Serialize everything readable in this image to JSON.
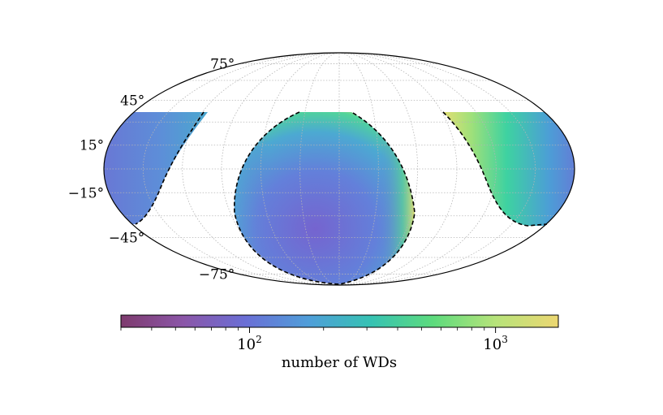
{
  "chart_data": {
    "type": "heatmap",
    "projection": "mollweide",
    "grid": true,
    "latitude_ticks": [
      {
        "value": 75,
        "label": "75°"
      },
      {
        "value": 45,
        "label": "45°"
      },
      {
        "value": 15,
        "label": "15°"
      },
      {
        "value": -15,
        "label": "−15°"
      },
      {
        "value": -45,
        "label": "−45°"
      },
      {
        "value": -75,
        "label": "−75°"
      }
    ],
    "longitude_grid_step": 30,
    "declination_cut": 30,
    "colorbar": {
      "scale": "log",
      "range": [
        30,
        1800
      ],
      "label": "number of WDs",
      "major_ticks": [
        {
          "value": 100,
          "base": "10",
          "exponent": "2"
        },
        {
          "value": 1000,
          "base": "10",
          "exponent": "3"
        }
      ],
      "colormap": [
        "#7e3b6e",
        "#8b56a8",
        "#6a6fd6",
        "#4f9ed9",
        "#36c2b3",
        "#5ddb7d",
        "#b7e37a",
        "#ecd772"
      ]
    },
    "regions": [
      {
        "name": "region-left",
        "typical_count": 150
      },
      {
        "name": "region-center",
        "typical_count": 200
      },
      {
        "name": "region-right",
        "typical_count": 600
      }
    ]
  }
}
